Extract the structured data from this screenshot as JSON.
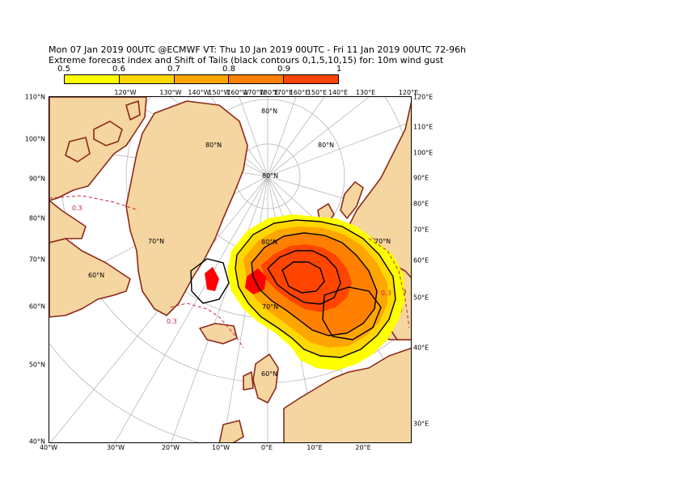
{
  "header": {
    "line1": "Mon 07 Jan 2019 00UTC @ECMWF VT: Thu 10 Jan 2019 00UTC - Fri 11 Jan 2019 00UTC  72-96h",
    "line2": "Extreme forecast index and Shift of Tails (black contours 0,1,5,10,15) for: 10m wind gust"
  },
  "legend": {
    "ticks": [
      "0.5",
      "0.6",
      "0.7",
      "0.8",
      "0.9",
      "1"
    ],
    "colors": [
      "#ffff00",
      "#ffd700",
      "#ffa500",
      "#ff8000",
      "#ff4500",
      "#ff0000"
    ]
  },
  "colors": {
    "land": "#f5d5a0",
    "coast": "#8b2a1a",
    "ocean": "#ffffff",
    "grid": "#b8b8b8",
    "sot": "#000000",
    "efi_low_contour": "#cc2244"
  },
  "map_labels": {
    "left_lat": [
      "110°N",
      "100°N",
      "90°N",
      "80°N",
      "70°N",
      "60°N",
      "50°N",
      "40°N"
    ],
    "right_lat": [
      "120°E",
      "110°E",
      "100°E",
      "90°E",
      "80°E",
      "70°E",
      "60°E",
      "50°E",
      "40°E",
      "30°E"
    ],
    "bottom_lon": [
      "40°W",
      "30°W",
      "20°W",
      "10°W",
      "0°E",
      "10°E",
      "20°E"
    ],
    "top_lon": [
      "120°W",
      "130°W",
      "140°W",
      "150°W",
      "160°W",
      "170°W",
      "180°E",
      "170°E",
      "160°E",
      "150°E",
      "140°E",
      "130°E",
      "120°E"
    ],
    "interior": [
      "80°N",
      "80°N",
      "80°N",
      "80°N",
      "70°N",
      "70°N",
      "80°N",
      "70°N",
      "60°N",
      "60°N"
    ],
    "efi_contour_labels": [
      "0.3",
      "0.3",
      "0.3"
    ]
  }
}
